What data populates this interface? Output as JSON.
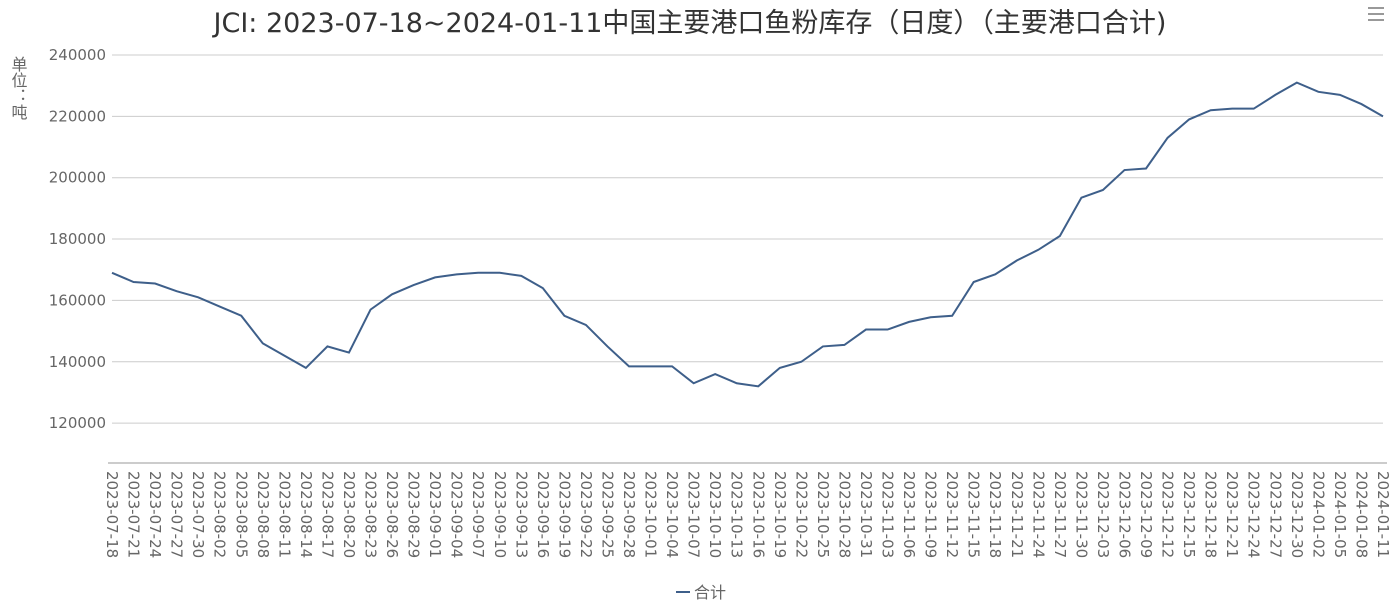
{
  "chart_data": {
    "type": "line",
    "title": "JCI: 2023-07-18~2024-01-11中国主要港口鱼粉库存（日度）（主要港口合计)",
    "y_axis_label": "单位：吨",
    "categories": [
      "2023-07-18",
      "2023-07-21",
      "2023-07-24",
      "2023-07-27",
      "2023-07-30",
      "2023-08-02",
      "2023-08-05",
      "2023-08-08",
      "2023-08-11",
      "2023-08-14",
      "2023-08-17",
      "2023-08-20",
      "2023-08-23",
      "2023-08-26",
      "2023-08-29",
      "2023-09-01",
      "2023-09-04",
      "2023-09-07",
      "2023-09-10",
      "2023-09-13",
      "2023-09-16",
      "2023-09-19",
      "2023-09-22",
      "2023-09-25",
      "2023-09-28",
      "2023-10-01",
      "2023-10-04",
      "2023-10-07",
      "2023-10-10",
      "2023-10-13",
      "2023-10-16",
      "2023-10-19",
      "2023-10-22",
      "2023-10-25",
      "2023-10-28",
      "2023-10-31",
      "2023-11-03",
      "2023-11-06",
      "2023-11-09",
      "2023-11-12",
      "2023-11-15",
      "2023-11-18",
      "2023-11-21",
      "2023-11-24",
      "2023-11-27",
      "2023-11-30",
      "2023-12-03",
      "2023-12-06",
      "2023-12-09",
      "2023-12-12",
      "2023-12-15",
      "2023-12-18",
      "2023-12-21",
      "2023-12-24",
      "2023-12-27",
      "2023-12-30",
      "2024-01-02",
      "2024-01-05",
      "2024-01-08",
      "2024-01-11"
    ],
    "series": [
      {
        "name": "合计",
        "color": "#3e5f8a",
        "values": [
          169000,
          166000,
          165500,
          163000,
          161000,
          158000,
          155000,
          146000,
          142000,
          138000,
          145000,
          143000,
          157000,
          162000,
          165000,
          167500,
          168500,
          169000,
          169000,
          168000,
          164000,
          155000,
          152000,
          145000,
          138500,
          138500,
          138500,
          133000,
          136000,
          133000,
          132000,
          138000,
          140000,
          145000,
          145500,
          150500,
          150500,
          153000,
          154500,
          155000,
          166000,
          168500,
          173000,
          176500,
          181000,
          193500,
          196000,
          202500,
          203000,
          213000,
          219000,
          222000,
          222500,
          222500,
          227000,
          231000,
          228000,
          227000,
          224000,
          220000
        ]
      }
    ],
    "ylim": [
      107000,
      240000
    ],
    "yticks": [
      120000,
      140000,
      160000,
      180000,
      200000,
      220000,
      240000
    ],
    "grid": true
  }
}
